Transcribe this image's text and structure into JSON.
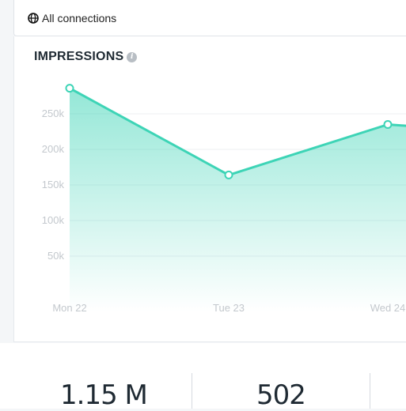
{
  "connections": {
    "label": "All connections",
    "icon": "globe-icon"
  },
  "impressions": {
    "title": "IMPRESSIONS",
    "info_icon": "info-icon"
  },
  "chart_data": {
    "type": "area",
    "categories": [
      "Mon 22",
      "Tue 23",
      "Wed 24"
    ],
    "values": [
      286000,
      164000,
      235000
    ],
    "y_ticks": [
      "250k",
      "200k",
      "150k",
      "100k",
      "50k"
    ],
    "ylim": [
      0,
      300000
    ],
    "grid": true,
    "color": "#3dd4b6"
  },
  "stats": [
    {
      "value": "1.15 M"
    },
    {
      "value": "502"
    }
  ]
}
